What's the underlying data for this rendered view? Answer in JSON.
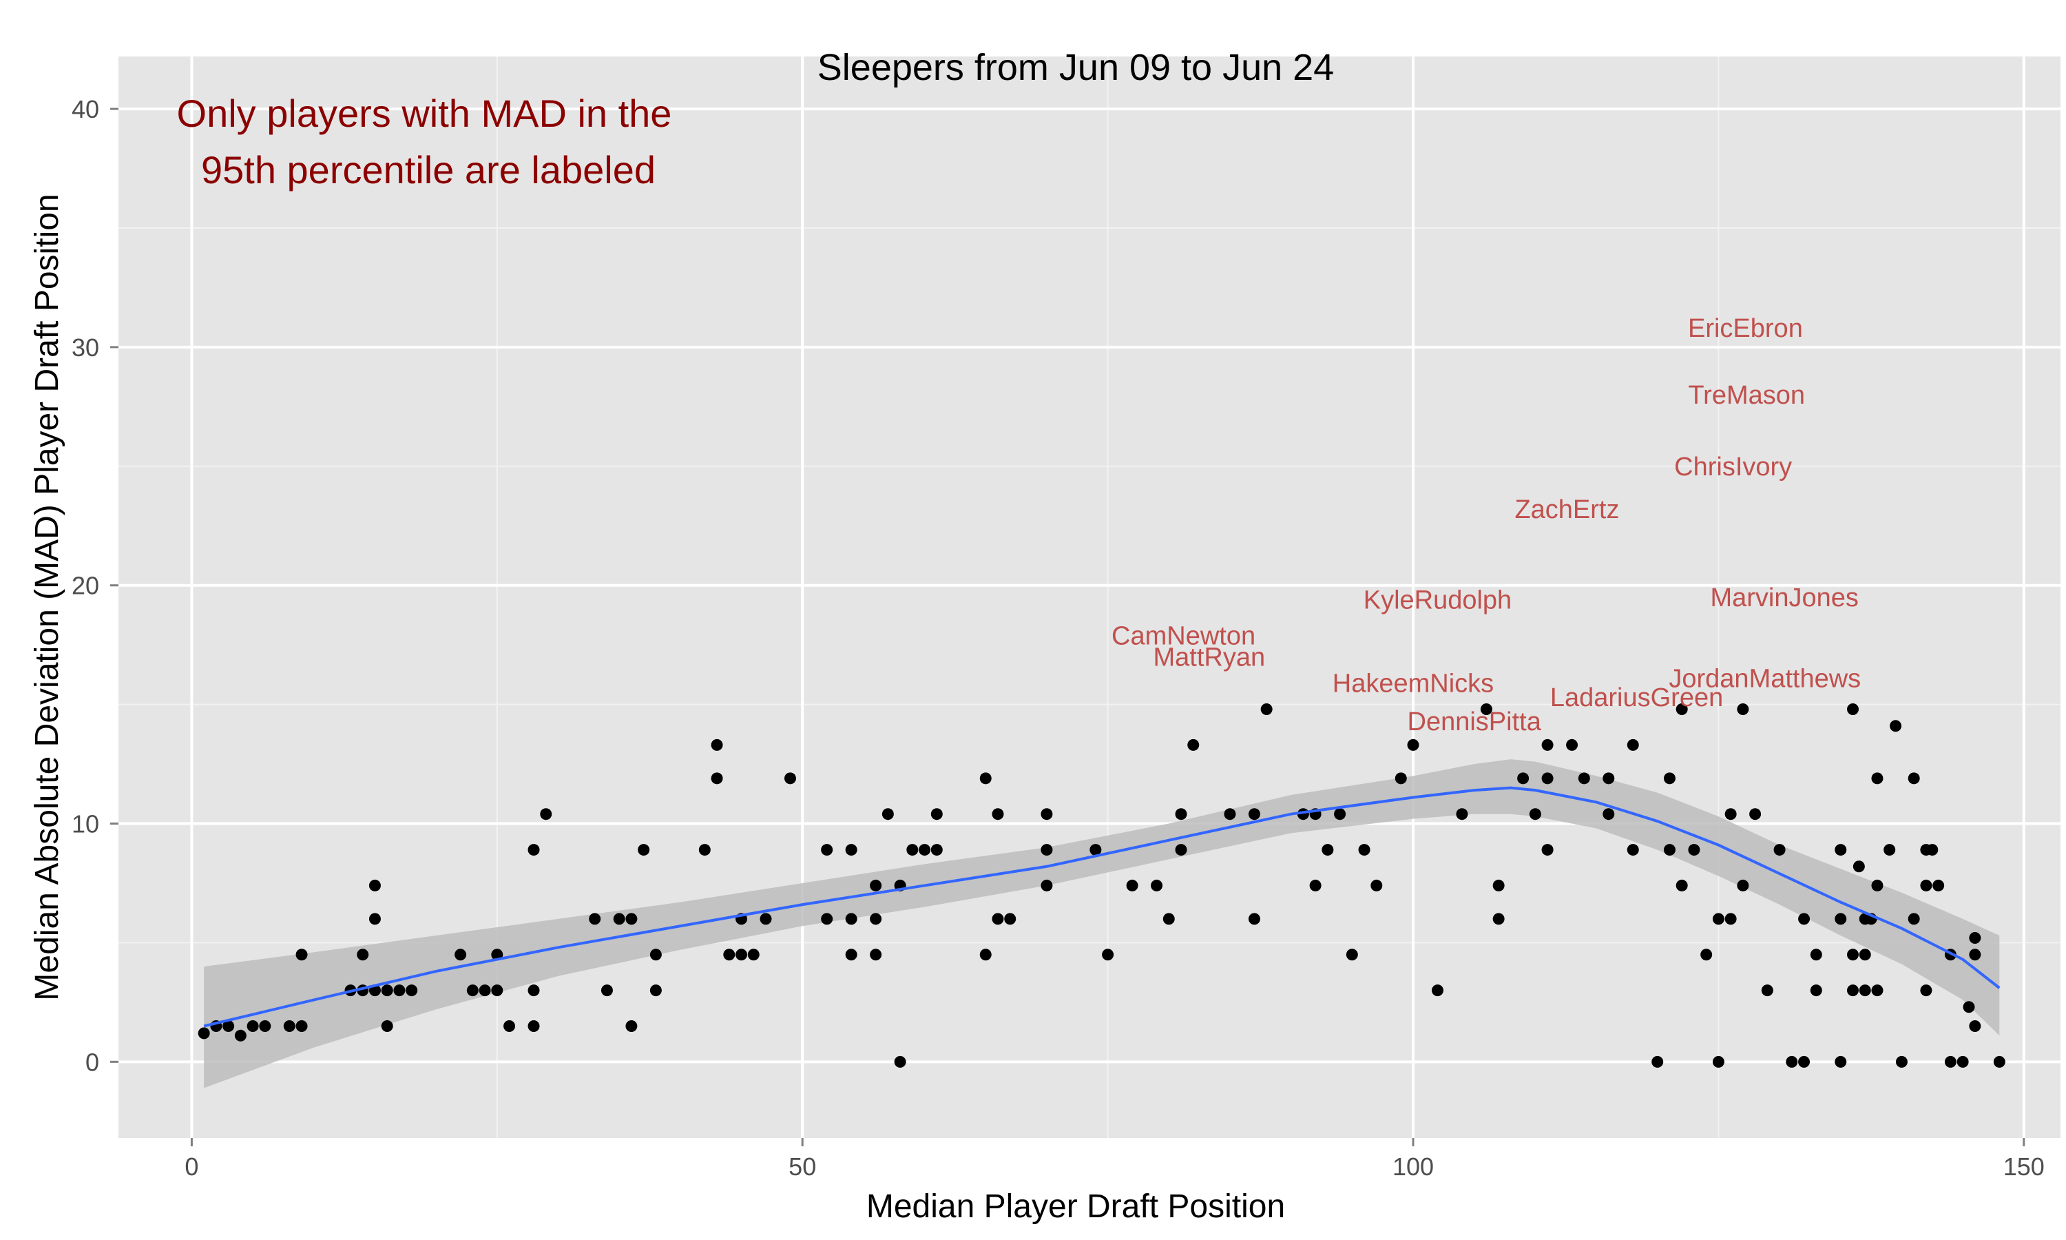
{
  "chart_data": {
    "type": "scatter",
    "title": "Sleepers from Jun 09 to Jun 24",
    "xlabel": "Median Player Draft Position",
    "ylabel": "Median Absolute Deviation (MAD) Player Draft Position",
    "xlim": [
      -6,
      153
    ],
    "ylim": [
      -3.2,
      42.2
    ],
    "x_ticks": [
      0,
      50,
      100,
      150
    ],
    "y_ticks": [
      0,
      10,
      20,
      30,
      40
    ],
    "x_tick_labels": [
      "0",
      "50",
      "100",
      "150"
    ],
    "y_tick_labels": [
      "0",
      "10",
      "20",
      "30",
      "40"
    ],
    "grid": true,
    "background": "#e5e5e5",
    "annotation": [
      "Only players with MAD in the",
      "95th percentile are labeled"
    ],
    "annotation_color": "#8b0000",
    "label_color": "#c0504d",
    "smooth_color": "#3366ff",
    "band_color": "#bdbdbd",
    "points": [
      [
        1,
        1.2
      ],
      [
        2,
        1.5
      ],
      [
        3,
        1.5
      ],
      [
        4,
        1.1
      ],
      [
        5,
        1.5
      ],
      [
        6,
        1.5
      ],
      [
        8,
        1.5
      ],
      [
        9,
        1.5
      ],
      [
        9,
        4.5
      ],
      [
        13,
        3
      ],
      [
        14,
        3
      ],
      [
        14,
        4.5
      ],
      [
        15,
        3
      ],
      [
        15,
        6
      ],
      [
        15,
        7.4
      ],
      [
        16,
        3
      ],
      [
        16,
        1.5
      ],
      [
        17,
        3
      ],
      [
        18,
        3
      ],
      [
        22,
        4.5
      ],
      [
        23,
        3
      ],
      [
        24,
        3
      ],
      [
        25,
        3
      ],
      [
        25,
        4.5
      ],
      [
        26,
        1.5
      ],
      [
        28,
        1.5
      ],
      [
        28,
        3
      ],
      [
        28,
        8.9
      ],
      [
        29,
        10.4
      ],
      [
        33,
        6
      ],
      [
        34,
        3
      ],
      [
        35,
        6
      ],
      [
        36,
        1.5
      ],
      [
        36,
        6
      ],
      [
        37,
        8.9
      ],
      [
        38,
        3
      ],
      [
        38,
        4.5
      ],
      [
        42,
        8.9
      ],
      [
        43,
        11.9
      ],
      [
        43,
        13.3
      ],
      [
        44,
        4.5
      ],
      [
        45,
        4.5
      ],
      [
        45,
        6
      ],
      [
        46,
        4.5
      ],
      [
        47,
        6
      ],
      [
        49,
        11.9
      ],
      [
        52,
        6
      ],
      [
        52,
        8.9
      ],
      [
        54,
        4.5
      ],
      [
        54,
        6
      ],
      [
        54,
        8.9
      ],
      [
        56,
        4.5
      ],
      [
        56,
        6
      ],
      [
        56,
        7.4
      ],
      [
        57,
        10.4
      ],
      [
        58,
        0
      ],
      [
        58,
        7.4
      ],
      [
        59,
        8.9
      ],
      [
        60,
        8.9
      ],
      [
        61,
        8.9
      ],
      [
        61,
        10.4
      ],
      [
        65,
        4.5
      ],
      [
        65,
        11.9
      ],
      [
        66,
        10.4
      ],
      [
        66,
        6
      ],
      [
        67,
        6
      ],
      [
        70,
        7.4
      ],
      [
        70,
        8.9
      ],
      [
        70,
        10.4
      ],
      [
        74,
        8.9
      ],
      [
        75,
        4.5
      ],
      [
        77,
        7.4
      ],
      [
        79,
        7.4
      ],
      [
        80,
        6
      ],
      [
        81,
        8.9
      ],
      [
        81,
        10.4
      ],
      [
        82,
        13.3
      ],
      [
        85,
        10.4
      ],
      [
        87,
        6
      ],
      [
        87,
        10.4
      ],
      [
        88,
        14.8
      ],
      [
        91,
        10.4
      ],
      [
        92,
        7.4
      ],
      [
        92,
        10.4
      ],
      [
        93,
        8.9
      ],
      [
        94,
        10.4
      ],
      [
        95,
        4.5
      ],
      [
        96,
        8.9
      ],
      [
        97,
        7.4
      ],
      [
        99,
        11.9
      ],
      [
        100,
        13.3
      ],
      [
        102,
        3
      ],
      [
        104,
        10.4
      ],
      [
        106,
        14.8
      ],
      [
        107,
        6
      ],
      [
        107,
        7.4
      ],
      [
        109,
        11.9
      ],
      [
        110,
        10.4
      ],
      [
        111,
        8.9
      ],
      [
        111,
        11.9
      ],
      [
        111,
        13.3
      ],
      [
        113,
        13.3
      ],
      [
        114,
        11.9
      ],
      [
        116,
        10.4
      ],
      [
        116,
        11.9
      ],
      [
        118,
        8.9
      ],
      [
        118,
        13.3
      ],
      [
        120,
        0
      ],
      [
        121,
        8.9
      ],
      [
        121,
        11.9
      ],
      [
        122,
        7.4
      ],
      [
        122,
        14.8
      ],
      [
        123,
        8.9
      ],
      [
        124,
        4.5
      ],
      [
        125,
        0
      ],
      [
        125,
        6
      ],
      [
        126,
        6
      ],
      [
        126,
        10.4
      ],
      [
        127,
        7.4
      ],
      [
        127,
        14.8
      ],
      [
        128,
        10.4
      ],
      [
        129,
        3
      ],
      [
        130,
        8.9
      ],
      [
        131,
        0
      ],
      [
        132,
        0
      ],
      [
        132,
        6
      ],
      [
        133,
        3
      ],
      [
        133,
        4.5
      ],
      [
        135,
        0
      ],
      [
        135,
        6
      ],
      [
        135,
        8.9
      ],
      [
        136,
        3
      ],
      [
        136,
        4.5
      ],
      [
        136,
        14.8
      ],
      [
        136.5,
        8.2
      ],
      [
        137,
        3
      ],
      [
        137,
        4.5
      ],
      [
        137,
        6
      ],
      [
        137.5,
        6
      ],
      [
        138,
        3
      ],
      [
        138,
        7.4
      ],
      [
        138,
        11.9
      ],
      [
        139,
        8.9
      ],
      [
        139.5,
        14.1
      ],
      [
        140,
        0
      ],
      [
        141,
        6
      ],
      [
        141,
        11.9
      ],
      [
        142,
        3
      ],
      [
        142,
        7.4
      ],
      [
        142,
        8.9
      ],
      [
        142.5,
        8.9
      ],
      [
        143,
        7.4
      ],
      [
        144,
        0
      ],
      [
        144,
        4.5
      ],
      [
        145,
        0
      ],
      [
        145.5,
        2.3
      ],
      [
        146,
        1.5
      ],
      [
        146,
        4.5
      ],
      [
        146,
        5.2
      ],
      [
        148,
        0
      ]
    ],
    "smooth": [
      [
        1,
        1.5
      ],
      [
        10,
        2.6
      ],
      [
        20,
        3.8
      ],
      [
        30,
        4.8
      ],
      [
        40,
        5.7
      ],
      [
        50,
        6.6
      ],
      [
        60,
        7.4
      ],
      [
        70,
        8.2
      ],
      [
        80,
        9.3
      ],
      [
        90,
        10.4
      ],
      [
        100,
        11.1
      ],
      [
        105,
        11.4
      ],
      [
        108,
        11.5
      ],
      [
        110,
        11.4
      ],
      [
        115,
        10.9
      ],
      [
        120,
        10.1
      ],
      [
        125,
        9.1
      ],
      [
        130,
        7.9
      ],
      [
        135,
        6.7
      ],
      [
        140,
        5.6
      ],
      [
        145,
        4.3
      ],
      [
        148,
        3.1
      ]
    ],
    "band_upper": [
      [
        1,
        4
      ],
      [
        10,
        4.6
      ],
      [
        20,
        5.3
      ],
      [
        30,
        6
      ],
      [
        40,
        6.7
      ],
      [
        50,
        7.5
      ],
      [
        60,
        8.3
      ],
      [
        70,
        9
      ],
      [
        80,
        10
      ],
      [
        90,
        11.2
      ],
      [
        100,
        12
      ],
      [
        105,
        12.5
      ],
      [
        108,
        12.7
      ],
      [
        110,
        12.6
      ],
      [
        115,
        12
      ],
      [
        120,
        11.3
      ],
      [
        125,
        10.3
      ],
      [
        130,
        9.1
      ],
      [
        135,
        8.1
      ],
      [
        140,
        7.1
      ],
      [
        145,
        6
      ],
      [
        148,
        5.3
      ]
    ],
    "band_lower": [
      [
        1,
        -1.1
      ],
      [
        10,
        0.6
      ],
      [
        20,
        2.2
      ],
      [
        30,
        3.6
      ],
      [
        40,
        4.7
      ],
      [
        50,
        5.7
      ],
      [
        60,
        6.5
      ],
      [
        70,
        7.4
      ],
      [
        80,
        8.5
      ],
      [
        90,
        9.6
      ],
      [
        100,
        10.2
      ],
      [
        105,
        10.4
      ],
      [
        108,
        10.4
      ],
      [
        110,
        10.3
      ],
      [
        115,
        9.8
      ],
      [
        120,
        8.9
      ],
      [
        125,
        7.8
      ],
      [
        130,
        6.6
      ],
      [
        135,
        5.3
      ],
      [
        140,
        4.1
      ],
      [
        145,
        2.6
      ],
      [
        148,
        1.1
      ]
    ],
    "labels": [
      {
        "text": "EricEbron",
        "x": 127.2,
        "y": 30.8
      },
      {
        "text": "TreMason",
        "x": 127.3,
        "y": 28.0
      },
      {
        "text": "ChrisIvory",
        "x": 126.2,
        "y": 25.0
      },
      {
        "text": "ZachErtz",
        "x": 112.6,
        "y": 23.2
      },
      {
        "text": "KyleRudolph",
        "x": 102.0,
        "y": 19.4
      },
      {
        "text": "MarvinJones",
        "x": 130.4,
        "y": 19.5
      },
      {
        "text": "CamNewton",
        "x": 81.2,
        "y": 17.9
      },
      {
        "text": "MattRyan",
        "x": 83.3,
        "y": 17.0
      },
      {
        "text": "HakeemNicks",
        "x": 100.0,
        "y": 15.9
      },
      {
        "text": "JordanMatthews",
        "x": 128.8,
        "y": 16.1
      },
      {
        "text": "LadariusGreen",
        "x": 118.3,
        "y": 15.3
      },
      {
        "text": "DennisPitta",
        "x": 105.0,
        "y": 14.3
      }
    ]
  }
}
